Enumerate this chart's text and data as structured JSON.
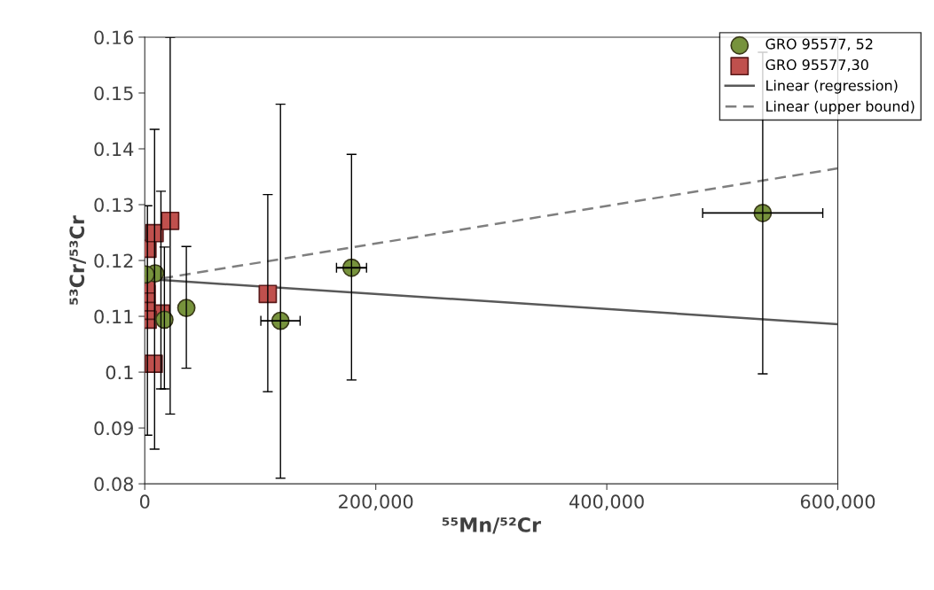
{
  "chart_data": {
    "type": "scatter",
    "xlabel": "⁵⁵Mn/⁵²Cr",
    "ylabel": "⁵³Cr/⁵³Cr",
    "xlim": [
      0,
      600000
    ],
    "xticks": [
      {
        "value": 0,
        "label": "0"
      },
      {
        "value": 200000,
        "label": "200,000"
      },
      {
        "value": 400000,
        "label": "400,000"
      },
      {
        "value": 600000,
        "label": "600,000"
      }
    ],
    "ylim": [
      0.08,
      0.16
    ],
    "yticks": [
      0.08,
      0.09,
      {
        "value": 0.1,
        "label": "0.1"
      },
      0.11,
      0.12,
      0.13,
      0.14,
      0.15,
      0.16
    ],
    "grid": false,
    "legend": "top right",
    "series": [
      {
        "name": "GRO 95577, 52",
        "marker": "circle",
        "color": "#77933c",
        "x": [
          800,
          9000,
          17000,
          36000,
          117500,
          179000,
          535000
        ],
        "values": [
          0.1175,
          0.1177,
          0.1094,
          0.1115,
          0.1092,
          0.1187,
          0.1285
        ],
        "errors": [
          null,
          null,
          [
            0.097,
            0.1224
          ],
          [
            0.1007,
            0.1225
          ],
          [
            0.081,
            0.148
          ],
          [
            0.0986,
            0.139
          ],
          [
            0.0997,
            0.1573
          ]
        ],
        "xerrors": [
          null,
          null,
          null,
          null,
          17000,
          13000,
          52000
        ]
      },
      {
        "name": "GRO 95577,30",
        "marker": "square",
        "color": "#c0504d",
        "x": [
          22000,
          8500,
          2300,
          1500,
          1500,
          1500,
          1500,
          2500,
          7700,
          106500,
          14000
        ],
        "values": [
          0.1271,
          0.1249,
          0.1221,
          0.1157,
          0.114,
          0.1125,
          0.111,
          0.1094,
          0.1015,
          0.114,
          0.1105
        ],
        "errors": [
          [
            0.0925,
            0.16
          ],
          [
            0.0862,
            0.1435
          ],
          [
            0.0887,
            0.1298
          ],
          null,
          null,
          null,
          null,
          null,
          null,
          [
            0.0965,
            0.1318
          ],
          [
            0.097,
            0.1324
          ]
        ]
      },
      {
        "name": "Linear (regression)",
        "type": "line",
        "line_style": "solid",
        "marker": "none",
        "color": "#595959",
        "x": [
          0,
          600000
        ],
        "values": [
          0.1167,
          0.1086
        ]
      },
      {
        "name": "Linear (upper bound)",
        "type": "line",
        "line_style": "dashed",
        "marker": "none",
        "color": "#7f7f7f",
        "x": [
          15000,
          600000
        ],
        "values": [
          0.1168,
          0.1365
        ]
      }
    ]
  }
}
